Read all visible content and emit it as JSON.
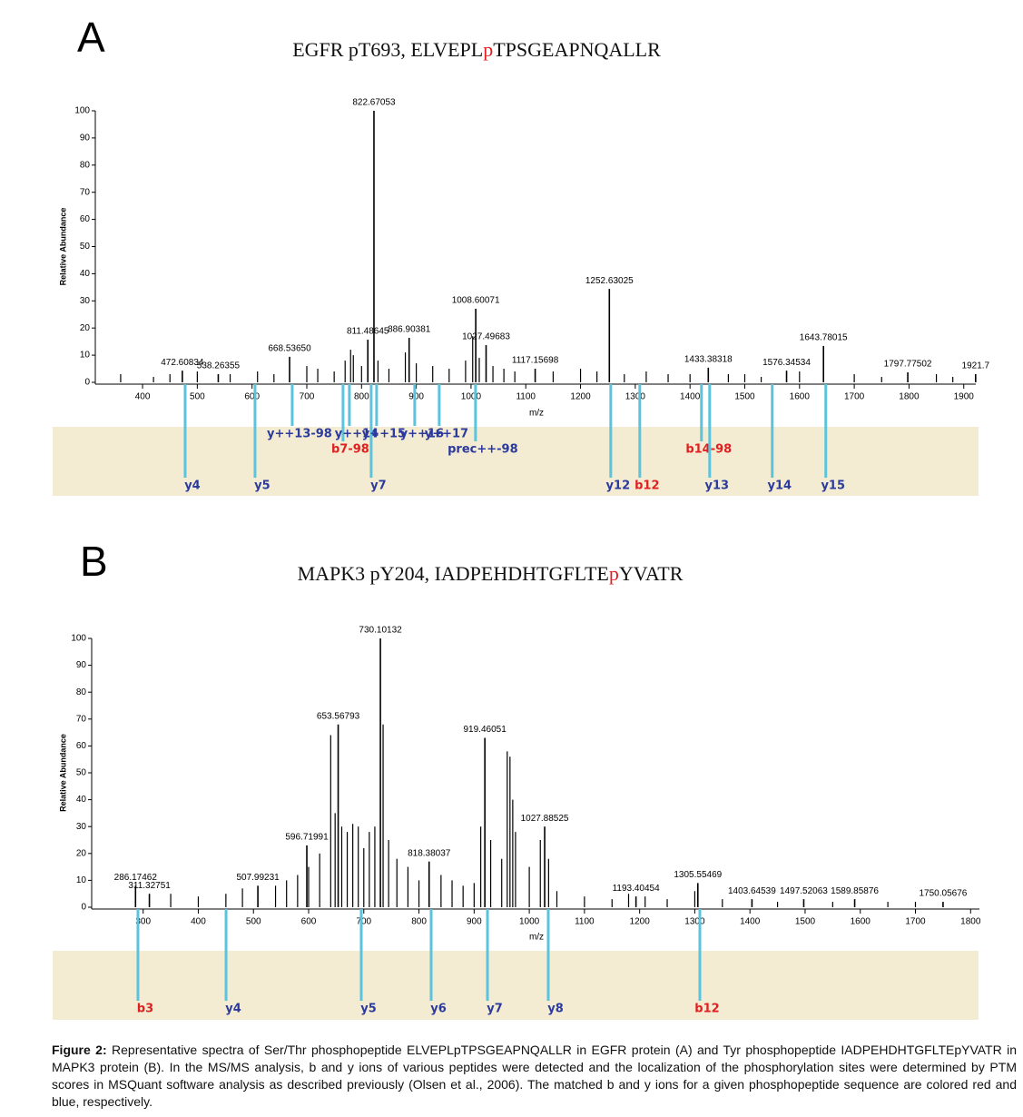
{
  "chart_data": [
    {
      "type": "spectrum",
      "label": "A",
      "title": [
        "EGFR pT693, ELVEPL",
        "p",
        "TPSGEAPNQALLR"
      ],
      "title_colors": [
        "#111111",
        "#e02020",
        "#111111"
      ],
      "xlabel": "m/z",
      "ylabel": "Relative Abundance",
      "xlim": [
        317,
        1922
      ],
      "ylim": [
        0,
        100
      ],
      "xticks": [
        400,
        500,
        600,
        700,
        800,
        900,
        1000,
        1100,
        1200,
        1300,
        1400,
        1500,
        1600,
        1700,
        1800,
        1900
      ],
      "yticks": [
        0,
        10,
        20,
        30,
        40,
        50,
        60,
        70,
        80,
        90,
        100
      ],
      "color": "#000000",
      "series": [
        {
          "x": [
            472.60834,
            538.26355,
            668.5365,
            811.48645,
            822.67053,
            886.90381,
            1008.60071,
            1027.49683,
            1117.15698,
            1252.63025,
            1433.38318,
            1576.34534,
            1643.78015,
            1797.77502,
            1921.7
          ],
          "values": [
            4.3,
            3,
            9.4,
            15.7,
            100,
            16.4,
            27.1,
            13.7,
            5,
            34.4,
            5.4,
            4.3,
            13.4,
            3.7,
            3
          ],
          "value_labels": [
            "472.60834",
            "538.26355",
            "668.53650",
            "811.48645",
            "822.67053",
            "886.90381",
            "1008.60071",
            "1027.49683",
            "1117.15698",
            "1252.63025",
            "1433.38318",
            "1576.34534",
            "1643.78015",
            "1797.77502",
            "1921.7"
          ]
        },
        {
          "x": [
            360,
            420,
            450,
            500,
            560,
            610,
            640,
            700,
            720,
            750,
            770,
            780,
            785,
            800,
            830,
            850,
            880,
            900,
            930,
            960,
            990,
            1003,
            1015,
            1040,
            1060,
            1080,
            1150,
            1200,
            1230,
            1280,
            1320,
            1360,
            1400,
            1470,
            1500,
            1530,
            1600,
            1700,
            1750,
            1850,
            1880
          ],
          "values": [
            3,
            2,
            3,
            4,
            3,
            4,
            3,
            6,
            5,
            4,
            8,
            12,
            10,
            6,
            8,
            5,
            11,
            7,
            6,
            5,
            8,
            17,
            9,
            6,
            5,
            4,
            4,
            5,
            4,
            3,
            4,
            3,
            3,
            3,
            3,
            2,
            4,
            3,
            2,
            3,
            2
          ]
        }
      ],
      "ions": {
        "labels": [
          "y4",
          "y5",
          "y++13-98",
          "b7-98",
          "y++14",
          "y7",
          "y++15",
          "y++16",
          "y++17",
          "prec++-98",
          "y12",
          "b12",
          "b14-98",
          "y13",
          "y14",
          "y15"
        ],
        "x": [
          477.8,
          605.4,
          673.4,
          766.2,
          777.8,
          817.6,
          827.5,
          897.1,
          941.9,
          1008.2,
          1255.2,
          1308.2,
          1420.9,
          1435.9,
          1550.2,
          1648
        ],
        "colors": [
          "#2b3a9c",
          "#2b3a9c",
          "#2b3a9c",
          "#e02020",
          "#2b3a9c",
          "#2b3a9c",
          "#2b3a9c",
          "#2b3a9c",
          "#2b3a9c",
          "#2b3a9c",
          "#2b3a9c",
          "#e02020",
          "#e02020",
          "#2b3a9c",
          "#2b3a9c",
          "#2b3a9c"
        ]
      },
      "ion_line_color": "#5bc3dc",
      "band_color": "#f3ecd3"
    },
    {
      "type": "spectrum",
      "label": "B",
      "title": [
        "MAPK3 pY204, IADPEHDHTGFLTE",
        "p",
        "YVATR"
      ],
      "title_colors": [
        "#111111",
        "#e02020",
        "#111111"
      ],
      "xlabel": "m/z",
      "ylabel": "Relative Abundance",
      "xlim": [
        210,
        1816
      ],
      "ylim": [
        0,
        100
      ],
      "xticks": [
        300,
        400,
        500,
        600,
        700,
        800,
        900,
        1000,
        1100,
        1200,
        1300,
        1400,
        1500,
        1600,
        1700,
        1800
      ],
      "yticks": [
        0,
        10,
        20,
        30,
        40,
        50,
        60,
        70,
        80,
        90,
        100
      ],
      "color": "#000000",
      "series": [
        {
          "x": [
            286.17462,
            311.32751,
            507.99231,
            596.71991,
            653.56793,
            730.10132,
            818.38037,
            919.46051,
            1027.88525,
            1193.40454,
            1305.55469,
            1403.64539,
            1497.52063,
            1589.85876,
            1750.05676
          ],
          "values": [
            8,
            5,
            8,
            23,
            68,
            100,
            17,
            63,
            30,
            4,
            9,
            3,
            3,
            3,
            2
          ],
          "value_labels": [
            "286.17462",
            "311.32751",
            "507.99231",
            "596.71991",
            "653.56793",
            "730.10132",
            "818.38037",
            "919.46051",
            "1027.88525",
            "1193.40454",
            "1305.55469",
            "1403.64539",
            "1497.52063",
            "1589.85876",
            "1750.05676"
          ]
        },
        {
          "x": [
            350,
            400,
            450,
            480,
            540,
            560,
            580,
            600,
            620,
            640,
            648,
            660,
            670,
            680,
            690,
            700,
            710,
            720,
            735,
            745,
            760,
            780,
            800,
            840,
            860,
            880,
            900,
            912,
            930,
            950,
            960,
            965,
            970,
            975,
            1000,
            1020,
            1035,
            1050,
            1100,
            1150,
            1180,
            1210,
            1250,
            1300,
            1350,
            1450,
            1550,
            1650,
            1700
          ],
          "values": [
            5,
            4,
            5,
            7,
            8,
            10,
            12,
            15,
            20,
            64,
            35,
            30,
            28,
            31,
            30,
            22,
            28,
            30,
            68,
            25,
            18,
            15,
            10,
            12,
            10,
            8,
            9,
            30,
            25,
            18,
            58,
            56,
            40,
            28,
            15,
            25,
            18,
            6,
            4,
            3,
            5,
            4,
            3,
            6,
            3,
            2,
            2,
            2,
            2
          ]
        }
      ],
      "ions": {
        "labels": [
          "b3",
          "y4",
          "y5",
          "y6",
          "y7",
          "y8",
          "b12"
        ],
        "x": [
          290.6,
          450.3,
          695.4,
          822.1,
          924.2,
          1034.4,
          1309.2
        ],
        "colors": [
          "#e02020",
          "#2b3a9c",
          "#2b3a9c",
          "#2b3a9c",
          "#2b3a9c",
          "#2b3a9c",
          "#e02020"
        ]
      },
      "ion_line_color": "#5bc3dc",
      "band_color": "#f3ecd3"
    }
  ],
  "caption": {
    "label": "Figure 2:",
    "text": "Representative spectra of Ser/Thr phosphopeptide ELVEPLpTPSGEAPNQALLR in EGFR protein (A) and Tyr phosphopeptide IADPEHDHTGFLTEpYVATR in MAPK3 protein (B). In the MS/MS analysis, b and y ions of various peptides were detected and the localization of the phosphorylation sites were determined by PTM scores in MSQuant software analysis as described previously (Olsen et al., 2006). The matched b and y ions for a given phosphopeptide sequence are colored red and blue, respectively."
  }
}
